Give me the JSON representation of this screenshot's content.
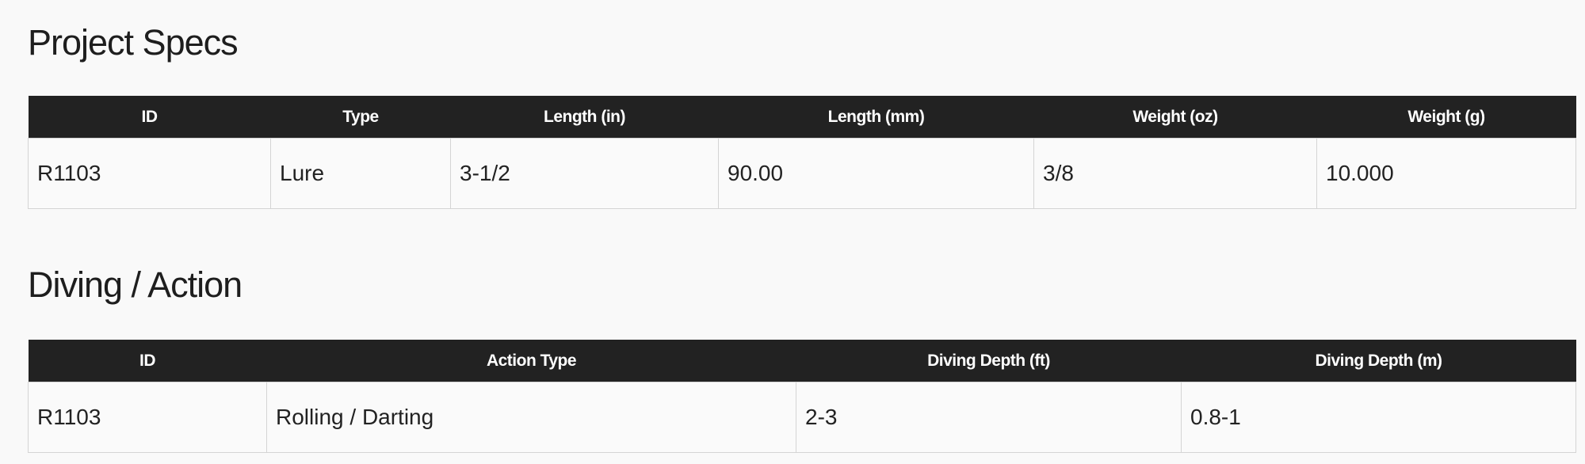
{
  "sections": [
    {
      "title": "Project Specs",
      "columns": [
        "ID",
        "Type",
        "Length (in)",
        "Length (mm)",
        "Weight (oz)",
        "Weight (g)"
      ],
      "rows": [
        [
          "R1103",
          "Lure",
          "3-1/2",
          "90.00",
          "3/8",
          "10.000"
        ]
      ]
    },
    {
      "title": "Diving / Action",
      "columns": [
        "ID",
        "Action Type",
        "Diving Depth (ft)",
        "Diving Depth (m)"
      ],
      "rows": [
        [
          "R1103",
          "Rolling / Darting",
          "2-3",
          "0.8-1"
        ]
      ]
    }
  ]
}
